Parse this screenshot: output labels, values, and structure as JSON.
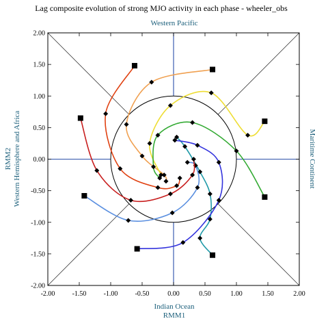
{
  "chart_data": {
    "type": "line",
    "title": "Lag composite evolution of strong MJO activity in each phase - wheeler_obs",
    "subtitle": "Western Pacific",
    "xlabel": "Indian Ocean",
    "xlabel2": "RMM1",
    "ylabel": "RMM2",
    "ylabel2": "Western Hemisphere and Africa",
    "right_label": "Maritime Continent",
    "xlim": [
      -2.0,
      2.0
    ],
    "ylim": [
      -2.0,
      2.0
    ],
    "xticks": [
      "-2.00",
      "-1.50",
      "-1.00",
      "-0.50",
      "0.00",
      "0.50",
      "1.00",
      "1.50",
      "2.00"
    ],
    "yticks": [
      "-2.00",
      "-1.50",
      "-1.00",
      "-0.50",
      "0.00",
      "0.50",
      "1.00",
      "1.50",
      "2.00"
    ],
    "unit_circle_radius": 1.0,
    "series": [
      {
        "color": "#1f9aa8",
        "start": [
          0.62,
          -1.52
        ],
        "points": [
          [
            0.62,
            -1.52
          ],
          [
            0.42,
            -1.25
          ],
          [
            0.58,
            -0.95
          ],
          [
            0.58,
            -0.55
          ],
          [
            0.42,
            -0.2
          ],
          [
            0.18,
            0.2
          ],
          [
            0.05,
            0.35
          ]
        ]
      },
      {
        "color": "#3333dd",
        "start": [
          -0.58,
          -1.42
        ],
        "points": [
          [
            -0.58,
            -1.42
          ],
          [
            0.15,
            -1.32
          ],
          [
            0.72,
            -0.65
          ],
          [
            0.72,
            -0.05
          ],
          [
            0.38,
            0.22
          ],
          [
            0.02,
            0.3
          ]
        ]
      },
      {
        "color": "#5a8fe0",
        "start": [
          -1.42,
          -0.58
        ],
        "points": [
          [
            -1.42,
            -0.58
          ],
          [
            -0.72,
            -0.97
          ],
          [
            -0.02,
            -0.85
          ],
          [
            0.38,
            -0.45
          ],
          [
            0.35,
            -0.1
          ],
          [
            0.22,
            -0.05
          ]
        ]
      },
      {
        "color": "#c81e1e",
        "start": [
          -1.48,
          0.65
        ],
        "points": [
          [
            -1.48,
            0.65
          ],
          [
            -1.22,
            -0.18
          ],
          [
            -0.68,
            -0.65
          ],
          [
            -0.05,
            -0.55
          ],
          [
            0.3,
            -0.25
          ],
          [
            0.32,
            0.0
          ]
        ]
      },
      {
        "color": "#e04010",
        "start": [
          -0.62,
          1.48
        ],
        "points": [
          [
            -0.62,
            1.48
          ],
          [
            -1.08,
            0.72
          ],
          [
            -0.85,
            -0.15
          ],
          [
            -0.25,
            -0.45
          ],
          [
            0.05,
            -0.42
          ],
          [
            0.1,
            -0.3
          ]
        ]
      },
      {
        "color": "#f0a050",
        "start": [
          0.62,
          1.42
        ],
        "points": [
          [
            0.62,
            1.42
          ],
          [
            -0.35,
            1.22
          ],
          [
            -0.75,
            0.55
          ],
          [
            -0.5,
            0.05
          ],
          [
            -0.15,
            -0.25
          ],
          [
            -0.12,
            -0.35
          ]
        ]
      },
      {
        "color": "#eedd33",
        "start": [
          1.45,
          0.6
        ],
        "points": [
          [
            1.45,
            0.6
          ],
          [
            1.18,
            0.38
          ],
          [
            0.6,
            1.05
          ],
          [
            -0.05,
            0.85
          ],
          [
            -0.38,
            0.25
          ],
          [
            -0.2,
            -0.25
          ]
        ]
      },
      {
        "color": "#33aa33",
        "start": [
          1.45,
          -0.6
        ],
        "points": [
          [
            1.45,
            -0.6
          ],
          [
            1.0,
            0.13
          ],
          [
            0.3,
            0.58
          ],
          [
            -0.25,
            0.38
          ],
          [
            -0.32,
            -0.12
          ],
          [
            -0.22,
            -0.3
          ]
        ]
      }
    ]
  }
}
